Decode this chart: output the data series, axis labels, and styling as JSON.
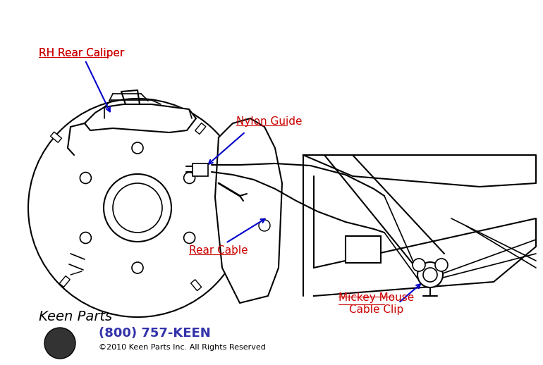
{
  "bg_color": "#ffffff",
  "line_color": "#000000",
  "label_color_red": "#cc0000",
  "label_color_blue": "#0000cc",
  "arrow_color": "#0000cc",
  "phone_color": "#3333aa",
  "labels": {
    "rh_rear_caliper": "RH Rear Caliper",
    "nylon_guide": "Nylon Guide",
    "rear_cable": "Rear Cable",
    "mickey_mouse": "Mickey Mouse\nCable Clip"
  },
  "footer_phone": "(800) 757-KEEN",
  "footer_copy": "©2010 Keen Parts Inc. All Rights Reserved",
  "footer_logo": "Keen Parts"
}
